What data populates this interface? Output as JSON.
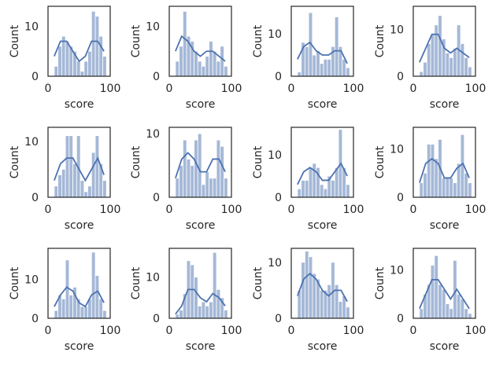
{
  "chart_data": [
    {
      "type": "histogram",
      "xlabel": "score",
      "ylabel": "Count",
      "bins": [
        10,
        16,
        22,
        28,
        34,
        40,
        46,
        52,
        58,
        64,
        70,
        76,
        82,
        88,
        94
      ],
      "counts": [
        2,
        6,
        8,
        7,
        6,
        5,
        3,
        1,
        3,
        5,
        13,
        12,
        8,
        4
      ],
      "color": "#a5b8d7",
      "kde": {
        "x": [
          10,
          20,
          30,
          40,
          50,
          60,
          70,
          80,
          90
        ],
        "y": [
          4,
          7,
          7,
          5,
          3,
          4,
          7,
          7,
          5
        ],
        "color": "#4c72b0"
      },
      "xlim": [
        0,
        100
      ],
      "ylim": [
        0,
        14
      ],
      "xticks": [
        0,
        100
      ],
      "yticks": [
        0,
        10
      ]
    },
    {
      "type": "histogram",
      "xlabel": "score",
      "ylabel": "Count",
      "bins": [
        10,
        16,
        22,
        28,
        34,
        40,
        46,
        52,
        58,
        64,
        70,
        76,
        82,
        88,
        94
      ],
      "counts": [
        3,
        6,
        13,
        8,
        7,
        5,
        3,
        2,
        4,
        7,
        5,
        3,
        6,
        2
      ],
      "color": "#a5b8d7",
      "kde": {
        "x": [
          10,
          20,
          30,
          40,
          50,
          60,
          70,
          80,
          90
        ],
        "y": [
          5,
          8,
          7,
          5,
          4,
          5,
          5,
          4,
          3
        ],
        "color": "#4c72b0"
      },
      "xlim": [
        0,
        100
      ],
      "ylim": [
        0,
        14
      ],
      "xticks": [
        0,
        100
      ],
      "yticks": [
        0,
        10
      ]
    },
    {
      "type": "histogram",
      "xlabel": "score",
      "ylabel": "Count",
      "bins": [
        10,
        16,
        22,
        28,
        34,
        40,
        46,
        52,
        58,
        64,
        70,
        76,
        82,
        88,
        94
      ],
      "counts": [
        1,
        8,
        7,
        15,
        5,
        6,
        3,
        4,
        4,
        7,
        14,
        7,
        4,
        2
      ],
      "color": "#a5b8d7",
      "kde": {
        "x": [
          10,
          20,
          30,
          40,
          50,
          60,
          70,
          80,
          90
        ],
        "y": [
          4,
          7,
          8,
          6,
          5,
          5,
          6,
          6,
          3
        ],
        "color": "#4c72b0"
      },
      "xlim": [
        0,
        100
      ],
      "ylim": [
        0,
        16.5
      ],
      "xticks": [
        0,
        100
      ],
      "yticks": [
        0,
        10
      ]
    },
    {
      "type": "histogram",
      "xlabel": "score",
      "ylabel": "Count",
      "bins": [
        10,
        16,
        22,
        28,
        34,
        40,
        46,
        52,
        58,
        64,
        70,
        76,
        82,
        88,
        94
      ],
      "counts": [
        1,
        3,
        7,
        9,
        11,
        13,
        8,
        5,
        4,
        6,
        11,
        7,
        4,
        2
      ],
      "color": "#a5b8d7",
      "kde": {
        "x": [
          10,
          20,
          30,
          40,
          50,
          60,
          70,
          80,
          90
        ],
        "y": [
          3,
          6,
          9,
          9,
          6,
          5,
          6,
          5,
          4
        ],
        "color": "#4c72b0"
      },
      "xlim": [
        0,
        100
      ],
      "ylim": [
        0,
        15
      ],
      "xticks": [
        0,
        100
      ],
      "yticks": [
        0,
        10
      ]
    },
    {
      "type": "histogram",
      "xlabel": "score",
      "ylabel": "Count",
      "bins": [
        10,
        16,
        22,
        28,
        34,
        40,
        46,
        52,
        58,
        64,
        70,
        76,
        82,
        88,
        94
      ],
      "counts": [
        2,
        4,
        5,
        11,
        11,
        6,
        11,
        3,
        1,
        2,
        8,
        11,
        6,
        3
      ],
      "color": "#a5b8d7",
      "kde": {
        "x": [
          10,
          20,
          30,
          40,
          50,
          60,
          70,
          80,
          90
        ],
        "y": [
          3,
          6,
          7,
          7,
          5,
          3,
          5,
          7,
          4
        ],
        "color": "#4c72b0"
      },
      "xlim": [
        0,
        100
      ],
      "ylim": [
        0,
        12.5
      ],
      "xticks": [
        0,
        100
      ],
      "yticks": [
        0,
        10
      ]
    },
    {
      "type": "histogram",
      "xlabel": "score",
      "ylabel": "Count",
      "bins": [
        10,
        16,
        22,
        28,
        34,
        40,
        46,
        52,
        58,
        64,
        70,
        76,
        82,
        88,
        94
      ],
      "counts": [
        3,
        5,
        9,
        6,
        5,
        9,
        10,
        2,
        4,
        3,
        3,
        9,
        8,
        3
      ],
      "color": "#a5b8d7",
      "kde": {
        "x": [
          10,
          20,
          30,
          40,
          50,
          60,
          70,
          80,
          90
        ],
        "y": [
          3,
          6,
          7,
          6,
          4,
          4,
          6,
          6,
          4
        ],
        "color": "#4c72b0"
      },
      "xlim": [
        0,
        100
      ],
      "ylim": [
        0,
        11
      ],
      "xticks": [
        0,
        100
      ],
      "yticks": [
        0,
        10
      ]
    },
    {
      "type": "histogram",
      "xlabel": "score",
      "ylabel": "Count",
      "bins": [
        10,
        16,
        22,
        28,
        34,
        40,
        46,
        52,
        58,
        64,
        70,
        76,
        82,
        88,
        94
      ],
      "counts": [
        2,
        4,
        4,
        7,
        8,
        7,
        3,
        2,
        5,
        4,
        7,
        16,
        7,
        3
      ],
      "color": "#a5b8d7",
      "kde": {
        "x": [
          10,
          20,
          30,
          40,
          50,
          60,
          70,
          80,
          90
        ],
        "y": [
          3,
          6,
          7,
          6,
          4,
          4,
          6,
          8,
          5
        ],
        "color": "#4c72b0"
      },
      "xlim": [
        0,
        100
      ],
      "ylim": [
        0,
        16.5
      ],
      "xticks": [
        0,
        100
      ],
      "yticks": [
        0,
        10
      ]
    },
    {
      "type": "histogram",
      "xlabel": "score",
      "ylabel": "Count",
      "bins": [
        10,
        16,
        22,
        28,
        34,
        40,
        46,
        52,
        58,
        64,
        70,
        76,
        82,
        88,
        94
      ],
      "counts": [
        3,
        5,
        11,
        11,
        8,
        12,
        4,
        4,
        4,
        3,
        7,
        13,
        5,
        3
      ],
      "color": "#a5b8d7",
      "kde": {
        "x": [
          10,
          20,
          30,
          40,
          50,
          60,
          70,
          80,
          90
        ],
        "y": [
          3,
          7,
          8,
          7,
          4,
          4,
          6,
          7,
          4
        ],
        "color": "#4c72b0"
      },
      "xlim": [
        0,
        100
      ],
      "ylim": [
        0,
        14.5
      ],
      "xticks": [
        0,
        100
      ],
      "yticks": [
        0,
        10
      ]
    },
    {
      "type": "histogram",
      "xlabel": "score",
      "ylabel": "Count",
      "bins": [
        10,
        16,
        22,
        28,
        34,
        40,
        46,
        52,
        58,
        64,
        70,
        76,
        82,
        88,
        94
      ],
      "counts": [
        2,
        6,
        5,
        15,
        6,
        8,
        5,
        3,
        3,
        5,
        17,
        11,
        5,
        2
      ],
      "color": "#a5b8d7",
      "kde": {
        "x": [
          10,
          20,
          30,
          40,
          50,
          60,
          70,
          80,
          90
        ],
        "y": [
          3,
          6,
          8,
          7,
          4,
          3,
          6,
          7,
          4
        ],
        "color": "#4c72b0"
      },
      "xlim": [
        0,
        100
      ],
      "ylim": [
        0,
        18
      ],
      "xticks": [
        0,
        100
      ],
      "yticks": [
        0,
        10
      ]
    },
    {
      "type": "histogram",
      "xlabel": "score",
      "ylabel": "Count",
      "bins": [
        10,
        16,
        22,
        28,
        34,
        40,
        46,
        52,
        58,
        64,
        70,
        76,
        82,
        88,
        94
      ],
      "counts": [
        1,
        2,
        6,
        14,
        13,
        10,
        3,
        4,
        3,
        4,
        16,
        7,
        5,
        2
      ],
      "color": "#a5b8d7",
      "kde": {
        "x": [
          10,
          20,
          30,
          40,
          50,
          60,
          70,
          80,
          90
        ],
        "y": [
          1,
          3,
          7,
          7,
          5,
          4,
          6,
          5,
          3
        ],
        "color": "#4c72b0"
      },
      "xlim": [
        0,
        100
      ],
      "ylim": [
        0,
        17
      ],
      "xticks": [
        0,
        100
      ],
      "yticks": [
        0,
        10
      ]
    },
    {
      "type": "histogram",
      "xlabel": "score",
      "ylabel": "Count",
      "bins": [
        10,
        16,
        22,
        28,
        34,
        40,
        46,
        52,
        58,
        64,
        70,
        76,
        82,
        88,
        94
      ],
      "counts": [
        5,
        10,
        12,
        11,
        8,
        7,
        5,
        5,
        6,
        10,
        6,
        3,
        4,
        2
      ],
      "color": "#a5b8d7",
      "kde": {
        "x": [
          10,
          20,
          30,
          40,
          50,
          60,
          70,
          80,
          90
        ],
        "y": [
          4,
          7,
          8,
          7,
          5,
          4,
          5,
          5,
          3
        ],
        "color": "#4c72b0"
      },
      "xlim": [
        0,
        100
      ],
      "ylim": [
        0,
        12.5
      ],
      "xticks": [
        0,
        100
      ],
      "yticks": [
        0,
        10
      ]
    },
    {
      "type": "histogram",
      "xlabel": "score",
      "ylabel": "Count",
      "bins": [
        10,
        16,
        22,
        28,
        34,
        40,
        46,
        52,
        58,
        64,
        70,
        76,
        82,
        88,
        94
      ],
      "counts": [
        2,
        5,
        7,
        11,
        13,
        7,
        6,
        3,
        2,
        12,
        5,
        4,
        2,
        1
      ],
      "color": "#a5b8d7",
      "kde": {
        "x": [
          10,
          20,
          30,
          40,
          50,
          60,
          70,
          80,
          90
        ],
        "y": [
          2,
          5,
          8,
          8,
          6,
          4,
          6,
          4,
          2
        ],
        "color": "#4c72b0"
      },
      "xlim": [
        0,
        100
      ],
      "ylim": [
        0,
        14.5
      ],
      "xticks": [
        0,
        100
      ],
      "yticks": [
        0,
        10
      ]
    }
  ]
}
